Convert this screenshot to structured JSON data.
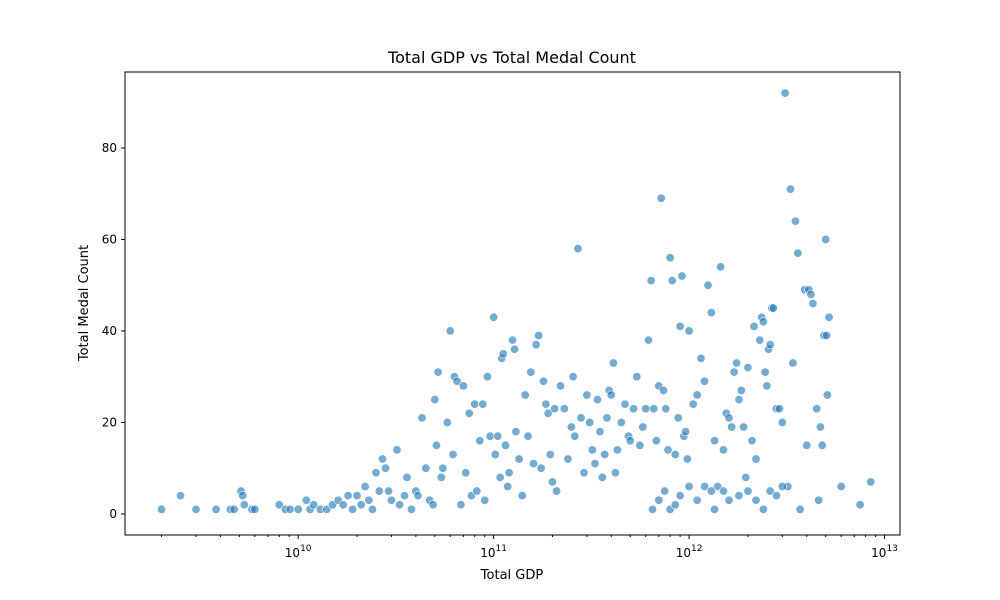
{
  "chart_data": {
    "type": "scatter",
    "title": "Total GDP vs Total Medal Count",
    "xlabel": "Total GDP",
    "ylabel": "Total Medal Count",
    "x_scale": "log",
    "xlim": [
      1300000000.0,
      12000000000000.0
    ],
    "ylim": [
      -4.6,
      96.6
    ],
    "x_ticks": [
      {
        "value": 10000000000.0,
        "base": "10",
        "exp": "10"
      },
      {
        "value": 100000000000.0,
        "base": "10",
        "exp": "11"
      },
      {
        "value": 1000000000000.0,
        "base": "10",
        "exp": "12"
      },
      {
        "value": 10000000000000.0,
        "base": "10",
        "exp": "13"
      }
    ],
    "y_ticks": [
      0,
      20,
      40,
      60,
      80
    ],
    "grid": false,
    "color": "#1f77b4",
    "points": [
      [
        2000000000.0,
        1
      ],
      [
        2500000000.0,
        4
      ],
      [
        3000000000.0,
        1
      ],
      [
        3800000000.0,
        1
      ],
      [
        4500000000.0,
        1
      ],
      [
        4700000000.0,
        1
      ],
      [
        5100000000.0,
        5
      ],
      [
        5200000000.0,
        4
      ],
      [
        5300000000.0,
        2
      ],
      [
        5800000000.0,
        1
      ],
      [
        6000000000.0,
        1
      ],
      [
        8000000000.0,
        2
      ],
      [
        8600000000.0,
        1
      ],
      [
        9100000000.0,
        1
      ],
      [
        10000000000.0,
        1
      ],
      [
        11000000000.0,
        3
      ],
      [
        11500000000.0,
        1
      ],
      [
        12000000000.0,
        2
      ],
      [
        13000000000.0,
        1
      ],
      [
        14000000000.0,
        1
      ],
      [
        15000000000.0,
        2
      ],
      [
        16000000000.0,
        3
      ],
      [
        17000000000.0,
        2
      ],
      [
        18000000000.0,
        4
      ],
      [
        19000000000.0,
        1
      ],
      [
        20000000000.0,
        4
      ],
      [
        21000000000.0,
        2
      ],
      [
        22000000000.0,
        6
      ],
      [
        23000000000.0,
        3
      ],
      [
        24000000000.0,
        1
      ],
      [
        25000000000.0,
        9
      ],
      [
        26000000000.0,
        5
      ],
      [
        27000000000.0,
        12
      ],
      [
        28000000000.0,
        10
      ],
      [
        29000000000.0,
        5
      ],
      [
        30000000000.0,
        3
      ],
      [
        32000000000.0,
        14
      ],
      [
        33000000000.0,
        2
      ],
      [
        35000000000.0,
        4
      ],
      [
        36000000000.0,
        8
      ],
      [
        38000000000.0,
        1
      ],
      [
        40000000000.0,
        5
      ],
      [
        41000000000.0,
        4
      ],
      [
        43000000000.0,
        21
      ],
      [
        45000000000.0,
        10
      ],
      [
        47000000000.0,
        3
      ],
      [
        49000000000.0,
        2
      ],
      [
        50000000000.0,
        25
      ],
      [
        51000000000.0,
        15
      ],
      [
        52000000000.0,
        31
      ],
      [
        54000000000.0,
        8
      ],
      [
        55000000000.0,
        10
      ],
      [
        58000000000.0,
        20
      ],
      [
        60000000000.0,
        40
      ],
      [
        62000000000.0,
        13
      ],
      [
        63000000000.0,
        30
      ],
      [
        65000000000.0,
        29
      ],
      [
        68000000000.0,
        2
      ],
      [
        70000000000.0,
        28
      ],
      [
        72000000000.0,
        9
      ],
      [
        75000000000.0,
        22
      ],
      [
        77000000000.0,
        4
      ],
      [
        80000000000.0,
        24
      ],
      [
        82000000000.0,
        5
      ],
      [
        85000000000.0,
        16
      ],
      [
        88000000000.0,
        24
      ],
      [
        90000000000.0,
        3
      ],
      [
        93000000000.0,
        30
      ],
      [
        96000000000.0,
        17
      ],
      [
        100000000000.0,
        43
      ],
      [
        102000000000.0,
        13
      ],
      [
        105000000000.0,
        17
      ],
      [
        108000000000.0,
        8
      ],
      [
        110000000000.0,
        34
      ],
      [
        112000000000.0,
        35
      ],
      [
        115000000000.0,
        15
      ],
      [
        118000000000.0,
        6
      ],
      [
        120000000000.0,
        9
      ],
      [
        125000000000.0,
        38
      ],
      [
        128000000000.0,
        36
      ],
      [
        130000000000.0,
        18
      ],
      [
        135000000000.0,
        12
      ],
      [
        140000000000.0,
        4
      ],
      [
        145000000000.0,
        26
      ],
      [
        150000000000.0,
        17
      ],
      [
        155000000000.0,
        31
      ],
      [
        160000000000.0,
        11
      ],
      [
        165000000000.0,
        37
      ],
      [
        170000000000.0,
        39
      ],
      [
        175000000000.0,
        10
      ],
      [
        180000000000.0,
        29
      ],
      [
        185000000000.0,
        24
      ],
      [
        190000000000.0,
        22
      ],
      [
        195000000000.0,
        13
      ],
      [
        200000000000.0,
        7
      ],
      [
        205000000000.0,
        23
      ],
      [
        210000000000.0,
        5
      ],
      [
        220000000000.0,
        28
      ],
      [
        230000000000.0,
        23
      ],
      [
        240000000000.0,
        12
      ],
      [
        250000000000.0,
        19
      ],
      [
        255000000000.0,
        30
      ],
      [
        260000000000.0,
        17
      ],
      [
        270000000000.0,
        58
      ],
      [
        280000000000.0,
        21
      ],
      [
        290000000000.0,
        9
      ],
      [
        300000000000.0,
        26
      ],
      [
        310000000000.0,
        20
      ],
      [
        320000000000.0,
        14
      ],
      [
        330000000000.0,
        11
      ],
      [
        340000000000.0,
        25
      ],
      [
        350000000000.0,
        18
      ],
      [
        360000000000.0,
        8
      ],
      [
        370000000000.0,
        13
      ],
      [
        380000000000.0,
        21
      ],
      [
        390000000000.0,
        27
      ],
      [
        400000000000.0,
        26
      ],
      [
        410000000000.0,
        33
      ],
      [
        420000000000.0,
        9
      ],
      [
        430000000000.0,
        14
      ],
      [
        450000000000.0,
        20
      ],
      [
        470000000000.0,
        24
      ],
      [
        490000000000.0,
        17
      ],
      [
        500000000000.0,
        16
      ],
      [
        520000000000.0,
        23
      ],
      [
        540000000000.0,
        30
      ],
      [
        560000000000.0,
        15
      ],
      [
        580000000000.0,
        19
      ],
      [
        600000000000.0,
        23
      ],
      [
        620000000000.0,
        38
      ],
      [
        640000000000.0,
        51
      ],
      [
        660000000000.0,
        23
      ],
      [
        680000000000.0,
        16
      ],
      [
        700000000000.0,
        28
      ],
      [
        720000000000.0,
        69
      ],
      [
        740000000000.0,
        27
      ],
      [
        760000000000.0,
        23
      ],
      [
        780000000000.0,
        14
      ],
      [
        800000000000.0,
        56
      ],
      [
        820000000000.0,
        51
      ],
      [
        850000000000.0,
        13
      ],
      [
        880000000000.0,
        21
      ],
      [
        900000000000.0,
        41
      ],
      [
        920000000000.0,
        52
      ],
      [
        940000000000.0,
        17
      ],
      [
        960000000000.0,
        18
      ],
      [
        980000000000.0,
        12
      ],
      [
        1000000000000.0,
        40
      ],
      [
        1050000000000.0,
        24
      ],
      [
        1100000000000.0,
        26
      ],
      [
        1150000000000.0,
        34
      ],
      [
        1200000000000.0,
        29
      ],
      [
        1250000000000.0,
        50
      ],
      [
        1300000000000.0,
        44
      ],
      [
        1350000000000.0,
        16
      ],
      [
        1400000000000.0,
        6
      ],
      [
        1450000000000.0,
        54
      ],
      [
        1500000000000.0,
        14
      ],
      [
        1550000000000.0,
        22
      ],
      [
        1600000000000.0,
        21
      ],
      [
        1650000000000.0,
        19
      ],
      [
        1700000000000.0,
        31
      ],
      [
        1750000000000.0,
        33
      ],
      [
        1800000000000.0,
        25
      ],
      [
        1850000000000.0,
        27
      ],
      [
        1900000000000.0,
        19
      ],
      [
        1950000000000.0,
        8
      ],
      [
        2000000000000.0,
        32
      ],
      [
        2100000000000.0,
        16
      ],
      [
        2150000000000.0,
        41
      ],
      [
        2200000000000.0,
        12
      ],
      [
        2300000000000.0,
        38
      ],
      [
        2350000000000.0,
        43
      ],
      [
        2400000000000.0,
        42
      ],
      [
        2450000000000.0,
        31
      ],
      [
        2500000000000.0,
        28
      ],
      [
        2550000000000.0,
        36
      ],
      [
        2600000000000.0,
        37
      ],
      [
        2650000000000.0,
        45
      ],
      [
        2700000000000.0,
        45
      ],
      [
        2800000000000.0,
        23
      ],
      [
        2900000000000.0,
        23
      ],
      [
        3000000000000.0,
        20
      ],
      [
        3100000000000.0,
        92
      ],
      [
        3200000000000.0,
        6
      ],
      [
        3300000000000.0,
        71
      ],
      [
        3400000000000.0,
        33
      ],
      [
        3500000000000.0,
        64
      ],
      [
        3600000000000.0,
        57
      ],
      [
        3700000000000.0,
        1
      ],
      [
        3900000000000.0,
        49
      ],
      [
        4000000000000.0,
        15
      ],
      [
        4100000000000.0,
        49
      ],
      [
        4200000000000.0,
        48
      ],
      [
        4300000000000.0,
        46
      ],
      [
        4500000000000.0,
        23
      ],
      [
        4600000000000.0,
        3
      ],
      [
        4700000000000.0,
        19
      ],
      [
        4800000000000.0,
        15
      ],
      [
        4900000000000.0,
        39
      ],
      [
        5000000000000.0,
        60
      ],
      [
        5050000000000.0,
        39
      ],
      [
        5100000000000.0,
        26
      ],
      [
        5200000000000.0,
        43
      ],
      [
        6000000000000.0,
        6
      ],
      [
        7500000000000.0,
        2
      ],
      [
        8500000000000.0,
        7
      ],
      [
        1000000000000.0,
        6
      ],
      [
        1100000000000.0,
        3
      ],
      [
        1200000000000.0,
        6
      ],
      [
        1300000000000.0,
        5
      ],
      [
        1350000000000.0,
        1
      ],
      [
        1500000000000.0,
        5
      ],
      [
        1600000000000.0,
        3
      ],
      [
        1800000000000.0,
        4
      ],
      [
        2000000000000.0,
        5
      ],
      [
        2200000000000.0,
        3
      ],
      [
        2400000000000.0,
        1
      ],
      [
        2600000000000.0,
        5
      ],
      [
        2800000000000.0,
        4
      ],
      [
        3000000000000.0,
        6
      ],
      [
        650000000000.0,
        1
      ],
      [
        700000000000.0,
        3
      ],
      [
        750000000000.0,
        5
      ],
      [
        800000000000.0,
        1
      ],
      [
        850000000000.0,
        2
      ],
      [
        900000000000.0,
        4
      ]
    ]
  }
}
